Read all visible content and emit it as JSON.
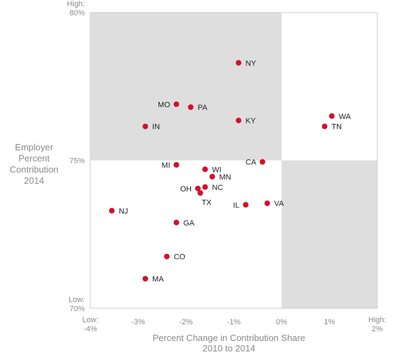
{
  "chart_data": {
    "type": "scatter",
    "xlabel": [
      "Percent Change in Contribution Share",
      "2010 to 2014"
    ],
    "ylabel": [
      "Employer",
      "Percent",
      "Contribution",
      "2014"
    ],
    "xlim": [
      -4,
      2
    ],
    "ylim": [
      70,
      80
    ],
    "x_ticks": [
      {
        "value": -4,
        "label": [
          "Low:",
          "-4%"
        ]
      },
      {
        "value": -3,
        "label": [
          "-3%"
        ]
      },
      {
        "value": -2,
        "label": [
          "-2%"
        ]
      },
      {
        "value": -1,
        "label": [
          "-1%"
        ]
      },
      {
        "value": 0,
        "label": [
          "0%"
        ]
      },
      {
        "value": 1,
        "label": [
          "1%"
        ]
      },
      {
        "value": 2,
        "label": [
          "High:",
          "2%"
        ]
      }
    ],
    "y_ticks": [
      {
        "value": 80,
        "label": [
          "High:",
          "80%"
        ]
      },
      {
        "value": 75,
        "label": [
          "75%"
        ]
      },
      {
        "value": 70,
        "label": [
          "Low:",
          "70%"
        ]
      }
    ],
    "quadrant_divider": {
      "x": 0,
      "y": 75
    },
    "colors": {
      "point": "#d3102c",
      "shaded": "#dedede",
      "border": "#cfcfcf"
    },
    "points": [
      {
        "label": "NY",
        "x": -0.9,
        "y": 78.3
      },
      {
        "label": "MO",
        "x": -2.2,
        "y": 76.9
      },
      {
        "label": "PA",
        "x": -1.9,
        "y": 76.8
      },
      {
        "label": "IN",
        "x": -2.85,
        "y": 76.15
      },
      {
        "label": "KY",
        "x": -0.9,
        "y": 76.35
      },
      {
        "label": "WA",
        "x": 1.05,
        "y": 76.5
      },
      {
        "label": "TN",
        "x": 0.9,
        "y": 76.15
      },
      {
        "label": "MI",
        "x": -2.2,
        "y": 74.85
      },
      {
        "label": "CA",
        "x": -0.4,
        "y": 74.95
      },
      {
        "label": "WI",
        "x": -1.6,
        "y": 74.7
      },
      {
        "label": "MN",
        "x": -1.45,
        "y": 74.45
      },
      {
        "label": "OH",
        "x": -1.75,
        "y": 74.05
      },
      {
        "label": "NC",
        "x": -1.6,
        "y": 74.1
      },
      {
        "label": "TX",
        "x": -1.7,
        "y": 73.9
      },
      {
        "label": "IL",
        "x": -0.75,
        "y": 73.5
      },
      {
        "label": "VA",
        "x": -0.3,
        "y": 73.55
      },
      {
        "label": "NJ",
        "x": -3.55,
        "y": 73.3
      },
      {
        "label": "GA",
        "x": -2.2,
        "y": 72.9
      },
      {
        "label": "CO",
        "x": -2.4,
        "y": 71.75
      },
      {
        "label": "MA",
        "x": -2.85,
        "y": 71.0
      }
    ]
  }
}
